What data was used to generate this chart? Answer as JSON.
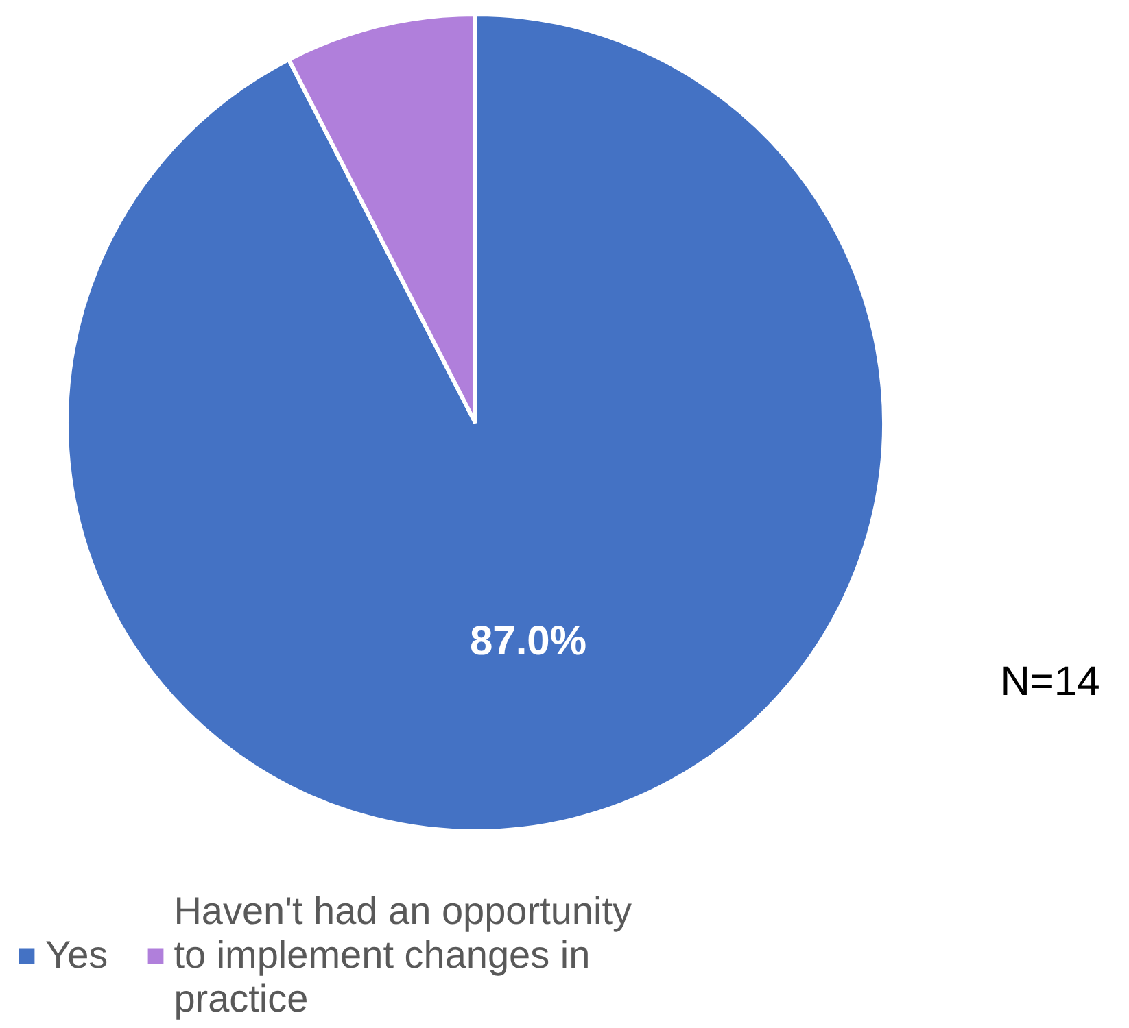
{
  "chart_data": {
    "type": "pie",
    "categories": [
      "Yes",
      "Haven't had an opportunity to implement changes in practice"
    ],
    "values": [
      87.0,
      7.1
    ],
    "colors": [
      "#4472c4",
      "#b07fdb"
    ],
    "value_labels": [
      "87.0%",
      null
    ],
    "legend": "bottom",
    "annotations": [
      "N=14"
    ]
  }
}
